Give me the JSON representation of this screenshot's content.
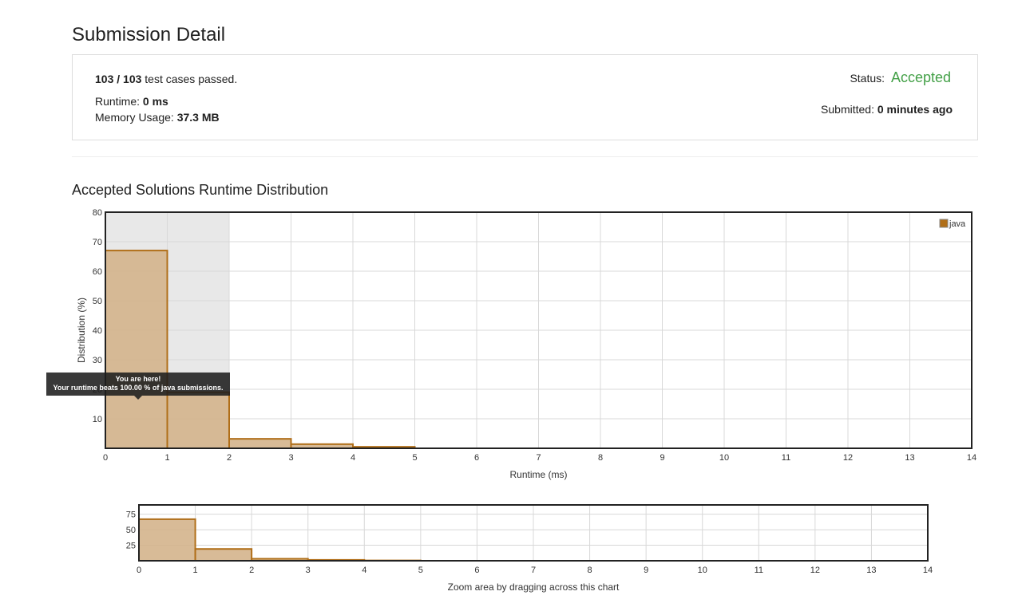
{
  "header": {
    "title": "Submission Detail"
  },
  "detail": {
    "cases_passed": "103 / 103",
    "cases_suffix": "test cases passed.",
    "runtime_label": "Runtime:",
    "runtime_value": "0 ms",
    "memory_label": "Memory Usage:",
    "memory_value": "37.3 MB",
    "status_label": "Status:",
    "status_value": "Accepted",
    "submitted_label": "Submitted:",
    "submitted_value": "0 minutes ago"
  },
  "colors": {
    "accepted": "#43a047",
    "bar_fill": "#d4b48c",
    "bar_stroke": "#b06e18",
    "highlight_band": "#e8e8e8",
    "grid": "#d8d8d8",
    "frame": "#222222"
  },
  "section": {
    "title": "Accepted Solutions Runtime Distribution"
  },
  "tooltip": {
    "line1": "You are here!",
    "line2": "Your runtime beats 100.00 % of java submissions."
  },
  "chart_data": [
    {
      "type": "bar",
      "name": "main",
      "xlabel": "Runtime (ms)",
      "ylabel": "Distribution (%)",
      "xlim": [
        0,
        14
      ],
      "ylim": [
        0,
        80
      ],
      "xticks": [
        0,
        1,
        2,
        3,
        4,
        5,
        6,
        7,
        8,
        9,
        10,
        11,
        12,
        13,
        14
      ],
      "yticks": [
        10,
        20,
        30,
        40,
        50,
        60,
        70,
        80
      ],
      "highlight_range": [
        0,
        2
      ],
      "grid": true,
      "legend": "top-right",
      "series": [
        {
          "name": "java",
          "bins": [
            {
              "x0": 0,
              "x1": 1,
              "value": 67
            },
            {
              "x0": 1,
              "x1": 2,
              "value": 19
            },
            {
              "x0": 2,
              "x1": 3,
              "value": 3.2
            },
            {
              "x0": 3,
              "x1": 4,
              "value": 1.4
            },
            {
              "x0": 4,
              "x1": 5,
              "value": 0.5
            }
          ]
        }
      ]
    },
    {
      "type": "bar",
      "name": "zoom",
      "xlabel": "Zoom area by dragging across this chart",
      "xlim": [
        0,
        14
      ],
      "ylim": [
        0,
        90
      ],
      "xticks": [
        0,
        1,
        2,
        3,
        4,
        5,
        6,
        7,
        8,
        9,
        10,
        11,
        12,
        13,
        14
      ],
      "yticks": [
        25,
        50,
        75
      ],
      "grid": true,
      "series": [
        {
          "name": "java",
          "bins": [
            {
              "x0": 0,
              "x1": 1,
              "value": 67
            },
            {
              "x0": 1,
              "x1": 2,
              "value": 19
            },
            {
              "x0": 2,
              "x1": 3,
              "value": 3.2
            },
            {
              "x0": 3,
              "x1": 4,
              "value": 1.4
            },
            {
              "x0": 4,
              "x1": 5,
              "value": 0.5
            }
          ]
        }
      ]
    }
  ]
}
